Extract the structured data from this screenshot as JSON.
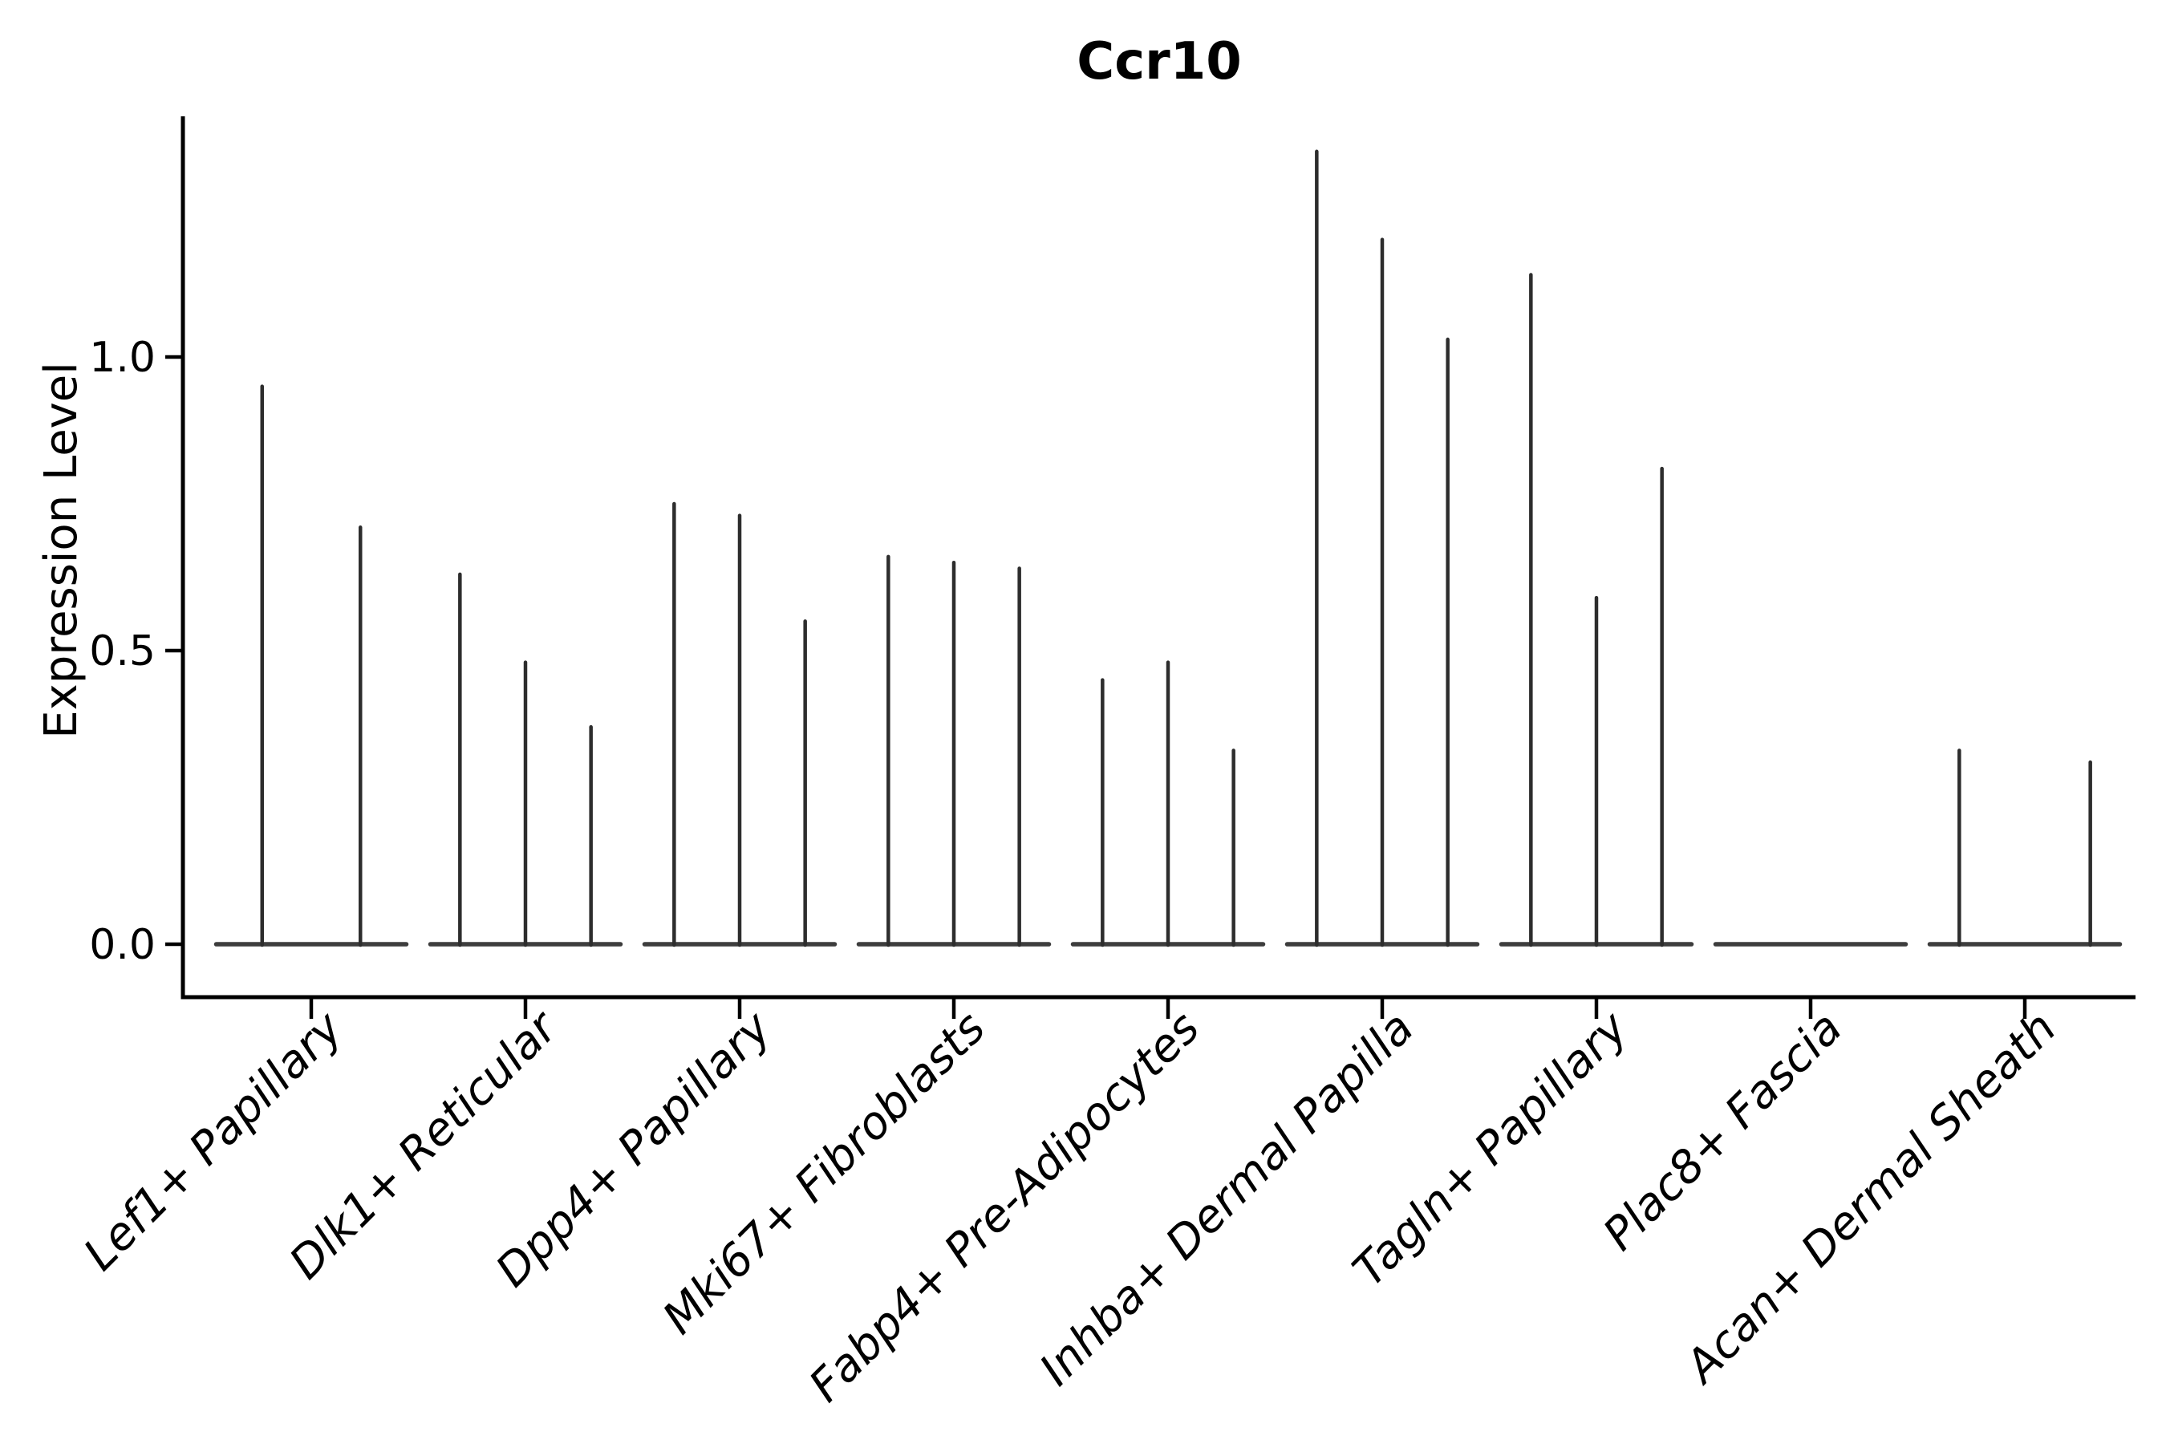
{
  "chart_data": {
    "type": "violin",
    "title": "Ccr10",
    "xlabel": "",
    "ylabel": "Expression Level",
    "ytick_labels": [
      "0.0",
      "0.5",
      "1.0"
    ],
    "ytick_values": [
      0.0,
      0.5,
      1.0
    ],
    "ylim": [
      -0.07,
      1.41
    ],
    "grid": false,
    "legend": null,
    "description": "Violin plot of Ccr10 expression; distributions collapse to a flat base at 0 with a thin spike up to each violin's maximum.",
    "categories": [
      "Lef1+ Papillary",
      "Dlk1+ Reticular",
      "Dpp4+ Papillary",
      "Mki67+ Fibroblasts",
      "Fabp4+ Pre-Adipocytes",
      "Inhba+ Dermal Papilla",
      "Tagln+ Papillary",
      "Plac8+ Fascia",
      "Acan+ Dermal Sheath"
    ],
    "series": [
      {
        "category": "Lef1+ Papillary",
        "violin_maxima": [
          0.95,
          0.71
        ]
      },
      {
        "category": "Dlk1+ Reticular",
        "violin_maxima": [
          0.63,
          0.48,
          0.37
        ]
      },
      {
        "category": "Dpp4+ Papillary",
        "violin_maxima": [
          0.75,
          0.73,
          0.55
        ]
      },
      {
        "category": "Mki67+ Fibroblasts",
        "violin_maxima": [
          0.66,
          0.65,
          0.64
        ]
      },
      {
        "category": "Fabp4+ Pre-Adipocytes",
        "violin_maxima": [
          0.45,
          0.48,
          0.33
        ]
      },
      {
        "category": "Inhba+ Dermal Papilla",
        "violin_maxima": [
          1.35,
          1.2,
          1.03
        ]
      },
      {
        "category": "Tagln+ Papillary",
        "violin_maxima": [
          1.14,
          0.59,
          0.81
        ]
      },
      {
        "category": "Plac8+ Fascia",
        "violin_maxima": [
          0.0,
          0.0,
          0.0
        ]
      },
      {
        "category": "Acan+ Dermal Sheath",
        "violin_maxima": [
          0.33,
          0.0,
          0.31
        ]
      }
    ],
    "colors": {
      "violin": "#2d2d2d",
      "axis": "#000000",
      "text": "#000000",
      "background": "#ffffff"
    }
  }
}
